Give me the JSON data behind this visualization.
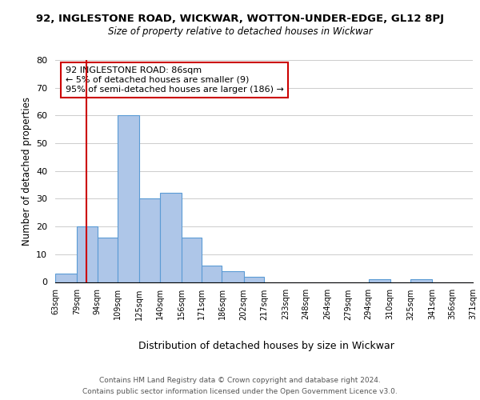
{
  "title_main": "92, INGLESTONE ROAD, WICKWAR, WOTTON-UNDER-EDGE, GL12 8PJ",
  "title_sub": "Size of property relative to detached houses in Wickwar",
  "xlabel": "Distribution of detached houses by size in Wickwar",
  "ylabel": "Number of detached properties",
  "bar_edges": [
    63,
    79,
    94,
    109,
    125,
    140,
    156,
    171,
    186,
    202,
    217,
    233,
    248,
    264,
    279,
    294,
    310,
    325,
    341,
    356,
    371
  ],
  "bar_heights": [
    3,
    20,
    16,
    60,
    30,
    32,
    16,
    6,
    4,
    2,
    0,
    0,
    0,
    0,
    0,
    1,
    0,
    1,
    0,
    0
  ],
  "bar_color": "#aec6e8",
  "bar_edgecolor": "#5b9bd5",
  "vline_x": 86,
  "vline_color": "#cc0000",
  "ylim": [
    0,
    80
  ],
  "annotation_text": "92 INGLESTONE ROAD: 86sqm\n← 5% of detached houses are smaller (9)\n95% of semi-detached houses are larger (186) →",
  "annotation_box_edgecolor": "#cc0000",
  "annotation_box_facecolor": "white",
  "annotation_fontsize": 8.0,
  "footer_line1": "Contains HM Land Registry data © Crown copyright and database right 2024.",
  "footer_line2": "Contains public sector information licensed under the Open Government Licence v3.0.",
  "tick_labels": [
    "63sqm",
    "79sqm",
    "94sqm",
    "109sqm",
    "125sqm",
    "140sqm",
    "156sqm",
    "171sqm",
    "186sqm",
    "202sqm",
    "217sqm",
    "233sqm",
    "248sqm",
    "264sqm",
    "279sqm",
    "294sqm",
    "310sqm",
    "325sqm",
    "341sqm",
    "356sqm",
    "371sqm"
  ],
  "background_color": "#ffffff",
  "grid_color": "#cccccc"
}
